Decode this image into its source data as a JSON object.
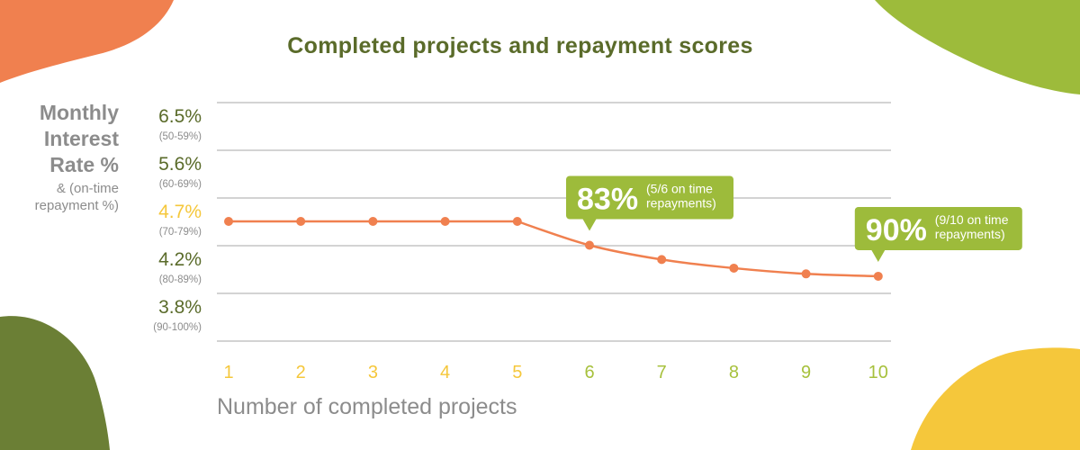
{
  "colors": {
    "background": "#ffffff",
    "olive": "#6b7f35",
    "olive_text": "#5a6b2a",
    "lime": "#9dbb3b",
    "lime_label": "#a7c13d",
    "orange": "#f0804f",
    "yellow": "#f5c73b",
    "grey_text": "#8c8c8c",
    "gridline": "#d3d3d3"
  },
  "chart_data": {
    "type": "line",
    "title": "Completed projects and repayment scores",
    "xlabel": "Number of completed projects",
    "ylabel": {
      "main": [
        "Monthly",
        "Interest",
        "Rate %"
      ],
      "sub": [
        "& (on-time",
        "repayment %)"
      ]
    },
    "y_ticks": [
      {
        "rate": 6.5,
        "label": "6.5%",
        "range": "(50-59%)",
        "highlight": false
      },
      {
        "rate": 5.6,
        "label": "5.6%",
        "range": "(60-69%)",
        "highlight": false
      },
      {
        "rate": 4.7,
        "label": "4.7%",
        "range": "(70-79%)",
        "highlight": true
      },
      {
        "rate": 4.2,
        "label": "4.2%",
        "range": "(80-89%)",
        "highlight": false
      },
      {
        "rate": 3.8,
        "label": "3.8%",
        "range": "(90-100%)",
        "highlight": false
      }
    ],
    "x": [
      1,
      2,
      3,
      4,
      5,
      6,
      7,
      8,
      9,
      10
    ],
    "x_tick_labels": [
      "1",
      "2",
      "3",
      "4",
      "5",
      "6",
      "7",
      "8",
      "9",
      "10"
    ],
    "values": [
      4.7,
      4.7,
      4.7,
      4.7,
      4.7,
      4.45,
      4.3,
      4.21,
      4.16,
      4.14
    ],
    "grid": true,
    "annotations": [
      {
        "x": 6,
        "big": "83%",
        "small": [
          "(5/6 on time",
          "repayments)"
        ]
      },
      {
        "x": 10,
        "big": "90%",
        "small": [
          "(9/10 on time",
          "repayments)"
        ]
      }
    ]
  }
}
